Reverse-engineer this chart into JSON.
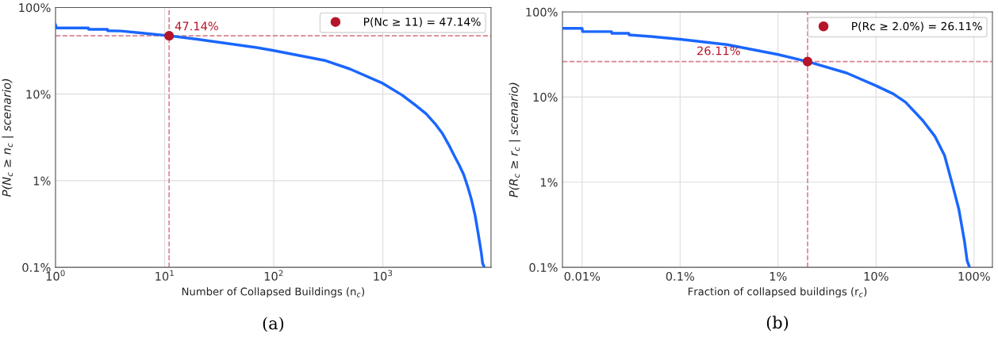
{
  "chart_data": [
    {
      "type": "line",
      "xlabel": "Number of Collapsed Buildings (n$_{c}$)",
      "ylabel": "P(N$_{c}$ ≥ n$_{c}$ | scenario)",
      "log": "xy",
      "grid": true,
      "legend": "top right",
      "line_style": "solid",
      "marker": "none",
      "xlim": [
        1,
        9800
      ],
      "xticks": [
        {
          "value": 1,
          "label": "10$^{0}$"
        },
        {
          "value": 10,
          "label": "10$^{1}$"
        },
        {
          "value": 100,
          "label": "10$^{2}$"
        },
        {
          "value": 1000,
          "label": "10$^{3}$"
        }
      ],
      "ylim": [
        0.1,
        100
      ],
      "yticks": [
        {
          "value": 0.1,
          "label": "0.1%"
        },
        {
          "value": 1,
          "label": "1%"
        },
        {
          "value": 10,
          "label": "10%"
        },
        {
          "value": 100,
          "label": "100%"
        }
      ],
      "series": [
        {
          "color": "#1a66ff",
          "x": [
            1,
            1.02,
            2,
            2.01,
            3,
            3.01,
            4,
            6,
            8,
            11,
            20,
            70,
            100,
            300,
            500,
            1000,
            1500,
            2000,
            2500,
            3000,
            3500,
            4000,
            4500,
            5000,
            5500,
            6000,
            6500,
            7000,
            7500,
            8000,
            8200,
            8500
          ],
          "values": [
            63,
            58,
            58,
            56,
            56,
            54,
            53.5,
            51,
            49,
            47.14,
            43,
            34.5,
            31.8,
            24.3,
            19.5,
            13.3,
            9.75,
            7.4,
            5.9,
            4.57,
            3.54,
            2.63,
            1.96,
            1.52,
            1.18,
            0.85,
            0.6,
            0.4,
            0.24,
            0.145,
            0.112,
            0.1
          ]
        },
        {
          "type": "scatter",
          "name": "P(Nc ≥ 11) = 47.14%",
          "color": "#b5152b",
          "marker": "circle",
          "x": [
            11
          ],
          "values": [
            47.14
          ]
        }
      ],
      "ref_lines": [
        {
          "axis": "x",
          "value": 11,
          "color": "#d9828f",
          "line_style": "dashed"
        },
        {
          "axis": "y",
          "value": 47.14,
          "color": "#d9828f",
          "line_style": "dashed"
        }
      ],
      "annotations": [
        {
          "text": "47.14%",
          "x": 11,
          "y": 47.14
        },
        "(a)"
      ]
    },
    {
      "type": "line",
      "xlabel": "Fraction of collapsed buildings (r$_{c}$)",
      "ylabel": "P(R$_{c}$ ≥ r$_{c}$ | scenario)",
      "log": "xy",
      "grid": true,
      "legend": "top right",
      "line_style": "solid",
      "marker": "none",
      "xlim": [
        0.0063,
        154
      ],
      "xticks": [
        {
          "value": 0.01,
          "label": "0.01%"
        },
        {
          "value": 0.1,
          "label": "0.1%"
        },
        {
          "value": 1,
          "label": "1%"
        },
        {
          "value": 10,
          "label": "10%"
        },
        {
          "value": 100,
          "label": "100%"
        }
      ],
      "ylim": [
        0.1,
        100
      ],
      "yticks": [
        {
          "value": 0.1,
          "label": "0.1%"
        },
        {
          "value": 1,
          "label": "1%"
        },
        {
          "value": 10,
          "label": "10%"
        },
        {
          "value": 100,
          "label": "100%"
        }
      ],
      "series": [
        {
          "color": "#1a66ff",
          "x": [
            0.0063,
            0.01,
            0.0101,
            0.02,
            0.0201,
            0.03,
            0.0301,
            0.05,
            0.1,
            0.3,
            1,
            2,
            5,
            10,
            15,
            20,
            30,
            40,
            50,
            60,
            70,
            80,
            85,
            90
          ],
          "values": [
            64,
            64,
            58.7,
            58.7,
            56,
            56,
            53.8,
            51.6,
            47.7,
            41.3,
            31.6,
            26.11,
            19.2,
            13.6,
            10.9,
            8.7,
            5.3,
            3.44,
            2.06,
            0.95,
            0.48,
            0.2,
            0.12,
            0.1
          ]
        },
        {
          "type": "scatter",
          "name": "P(Rc ≥ 2.0%) = 26.11%",
          "color": "#b5152b",
          "marker": "circle",
          "x": [
            2
          ],
          "values": [
            26.11
          ]
        }
      ],
      "ref_lines": [
        {
          "axis": "x",
          "value": 2,
          "color": "#d9828f",
          "line_style": "dashed"
        },
        {
          "axis": "y",
          "value": 26.11,
          "color": "#d9828f",
          "line_style": "dashed"
        }
      ],
      "annotations": [
        {
          "text": "26.11%",
          "x": 0.26,
          "y": 26.11
        },
        "(b)"
      ]
    }
  ]
}
